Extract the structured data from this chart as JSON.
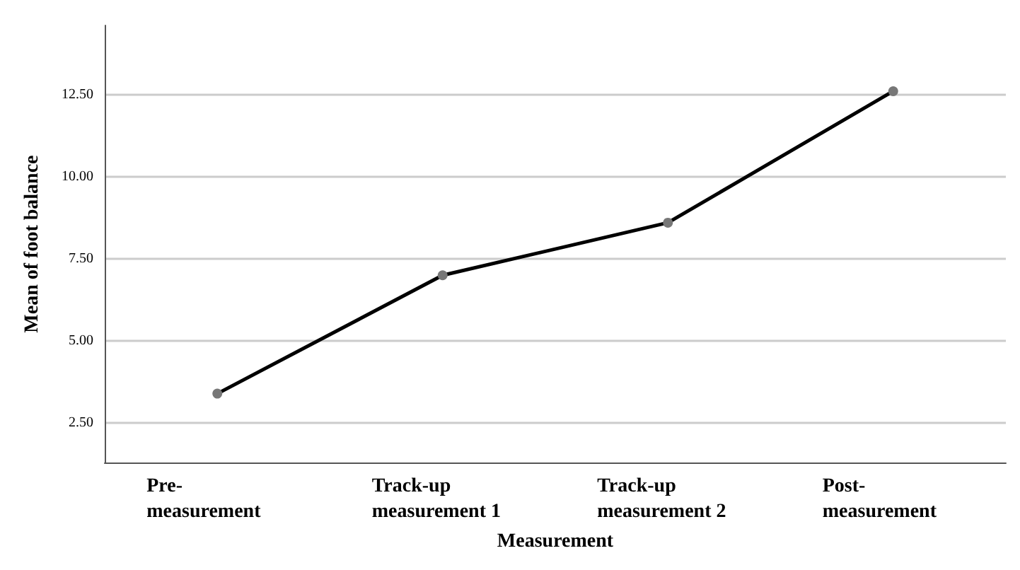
{
  "chart_data": {
    "type": "line",
    "xlabel": "Measurement",
    "ylabel": "Mean of foot balance",
    "categories": [
      "Pre-\nmeasurement",
      "Track-up\nmeasurement 1",
      "Track-up\nmeasurement 2",
      "Post-\nmeasurement"
    ],
    "series": [
      {
        "color": "#000000",
        "values": [
          3.4,
          7.0,
          8.6,
          12.6
        ]
      }
    ],
    "ylim": [
      1.3,
      14.6
    ],
    "yticks": [
      {
        "value": 2.5,
        "label": "2.50"
      },
      {
        "value": 5,
        "label": "5.00"
      },
      {
        "value": 7.5,
        "label": "7.50"
      },
      {
        "value": 10,
        "label": "10.00"
      },
      {
        "value": 12.5,
        "label": "12.50"
      }
    ],
    "grid": "y",
    "marker": "circle",
    "line_style": "solid"
  }
}
